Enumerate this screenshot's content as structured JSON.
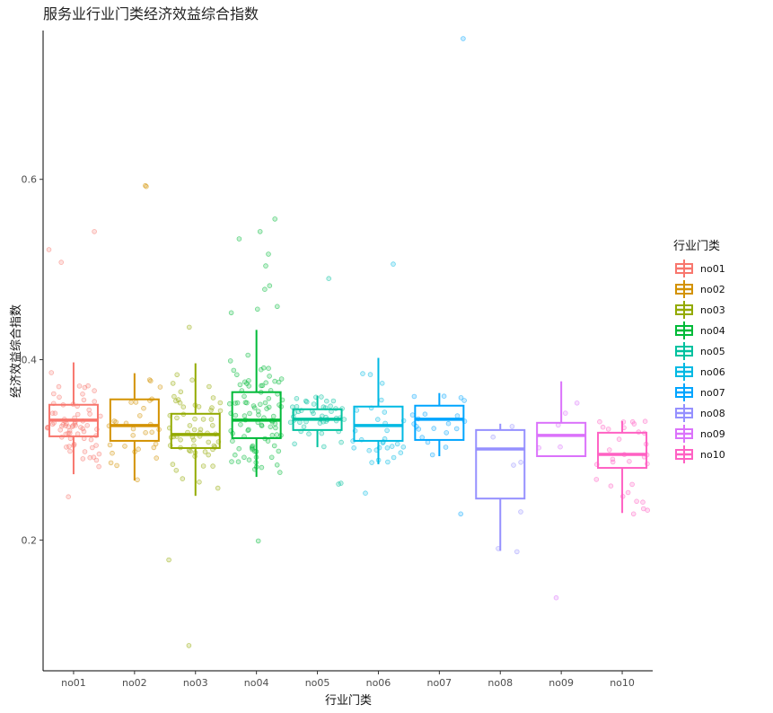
{
  "chart_data": {
    "type": "boxplot",
    "title": "服务业行业门类经济效益综合指数",
    "xlabel": "行业门类",
    "ylabel": "经济效益综合指数",
    "ylim": [
      0.055,
      0.765
    ],
    "yticks": [
      0.2,
      0.4,
      0.6
    ],
    "legend": {
      "title": "行业门类",
      "placement": "right"
    },
    "grid": false,
    "categories": [
      "no01",
      "no02",
      "no03",
      "no04",
      "no05",
      "no06",
      "no07",
      "no08",
      "no09",
      "no10"
    ],
    "colors": [
      "#F8766D",
      "#D39200",
      "#93AA00",
      "#00BA38",
      "#00C19F",
      "#00B9E3",
      "#00A5FF",
      "#9590FF",
      "#DB72FB",
      "#FF61C3"
    ],
    "boxes": [
      {
        "q1": 0.315,
        "median": 0.333,
        "q3": 0.35,
        "lower": 0.273,
        "upper": 0.397
      },
      {
        "q1": 0.31,
        "median": 0.327,
        "q3": 0.356,
        "lower": 0.266,
        "upper": 0.385
      },
      {
        "q1": 0.302,
        "median": 0.317,
        "q3": 0.34,
        "lower": 0.249,
        "upper": 0.396
      },
      {
        "q1": 0.313,
        "median": 0.333,
        "q3": 0.364,
        "lower": 0.27,
        "upper": 0.433
      },
      {
        "q1": 0.322,
        "median": 0.334,
        "q3": 0.345,
        "lower": 0.303,
        "upper": 0.36
      },
      {
        "q1": 0.31,
        "median": 0.327,
        "q3": 0.348,
        "lower": 0.284,
        "upper": 0.402
      },
      {
        "q1": 0.311,
        "median": 0.334,
        "q3": 0.349,
        "lower": 0.293,
        "upper": 0.363
      },
      {
        "q1": 0.246,
        "median": 0.301,
        "q3": 0.322,
        "lower": 0.188,
        "upper": 0.329
      },
      {
        "q1": 0.293,
        "median": 0.316,
        "q3": 0.33,
        "lower": 0.293,
        "upper": 0.376
      },
      {
        "q1": 0.28,
        "median": 0.295,
        "q3": 0.319,
        "lower": 0.23,
        "upper": 0.332
      }
    ],
    "outliers": [
      [
        0.542,
        0.508,
        0.522,
        0.248
      ],
      [
        0.593,
        0.592
      ],
      [
        0.178,
        0.083,
        0.436
      ],
      [
        0.556,
        0.534,
        0.542,
        0.517,
        0.504,
        0.478,
        0.482,
        0.459,
        0.456,
        0.452,
        0.199
      ],
      [
        0.49,
        0.263,
        0.262
      ],
      [
        0.506,
        0.252
      ],
      [
        0.756,
        0.229
      ],
      [
        0.187
      ],
      [
        0.136
      ],
      [
        0.229
      ]
    ],
    "counts": [
      70,
      30,
      60,
      90,
      45,
      30,
      20,
      6,
      5,
      30
    ]
  }
}
